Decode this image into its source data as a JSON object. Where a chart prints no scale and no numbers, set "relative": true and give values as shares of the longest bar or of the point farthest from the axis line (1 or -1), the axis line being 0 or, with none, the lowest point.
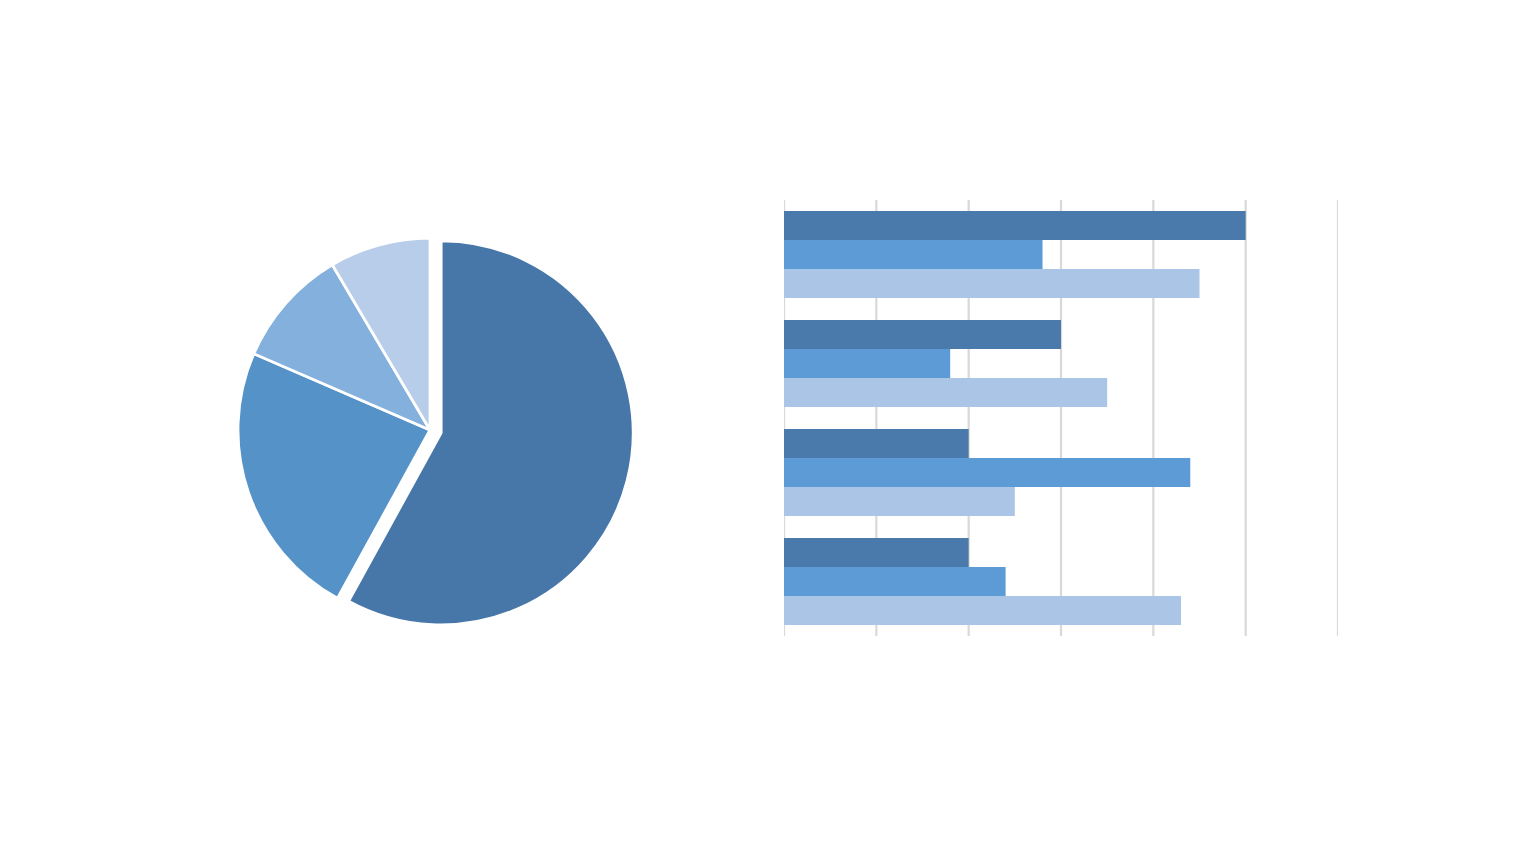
{
  "chart_data": [
    {
      "type": "pie",
      "categories": [
        null,
        null,
        null,
        null
      ],
      "values": [
        58,
        23.5,
        10,
        8.5
      ],
      "colors": [
        "#4677a8",
        "#5592c8",
        "#84b0dd",
        "#b7cde9"
      ]
    },
    {
      "type": "bar",
      "orientation": "horizontal",
      "relative": true,
      "grid": "x",
      "categories": [
        null,
        null,
        null,
        null
      ],
      "series": [
        {
          "color": "#4a7aab",
          "values": [
            1,
            0.6,
            0.4,
            0.4
          ]
        },
        {
          "color": "#5d9bd6",
          "values": [
            0.56,
            0.36,
            0.88,
            0.48
          ]
        },
        {
          "color": "#aac5e5",
          "values": [
            0.9,
            0.7,
            0.5,
            0.86
          ]
        }
      ]
    }
  ]
}
